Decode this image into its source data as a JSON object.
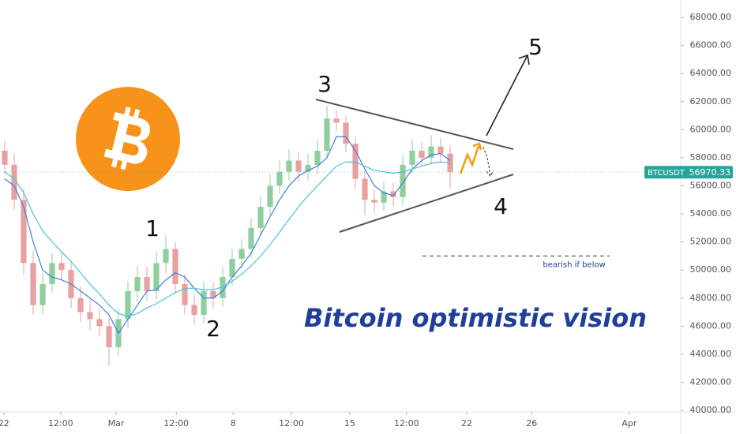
{
  "chart_data": {
    "type": "candlestick",
    "symbol": "BTCUSDT",
    "last_price": 56970.33,
    "last_price_color": "#26a69a",
    "up_color": "#8fcf9f",
    "down_color": "#e9a0a0",
    "x": [
      0.5,
      1.5,
      2.5,
      3.5,
      4.5,
      5.5,
      6.5,
      7.5,
      8.5,
      9.5,
      10.5,
      11.5,
      12.5,
      13.5,
      14.5,
      15.5,
      16.5,
      17.5,
      18.5,
      19.5,
      20.5,
      21.5,
      22.5,
      23.5,
      24.5,
      25.5,
      26.5,
      27.5,
      28.5,
      29.5,
      30.5,
      31.5,
      32.5,
      33.5,
      34.5,
      35.5,
      36.5,
      37.5,
      38.5,
      39.5,
      40.5,
      41.5,
      42.5,
      43.5,
      44.5,
      45.5,
      46.5,
      47.5
    ],
    "open": [
      58500,
      57500,
      55000,
      50500,
      47500,
      49000,
      50500,
      50000,
      48000,
      47000,
      46500,
      46000,
      44500,
      46500,
      48500,
      49500,
      48500,
      50500,
      51500,
      49000,
      47500,
      46800,
      48500,
      48000,
      49500,
      50800,
      51500,
      53000,
      54500,
      56000,
      57000,
      57800,
      57000,
      57500,
      58500,
      60800,
      60500,
      59000,
      56500,
      55000,
      54800,
      55600,
      55200,
      57500,
      58500,
      58000,
      58800,
      58300
    ],
    "high": [
      59200,
      58300,
      55800,
      51400,
      49800,
      51200,
      51300,
      50700,
      48800,
      47900,
      47300,
      46600,
      47200,
      49200,
      50300,
      50200,
      51300,
      52500,
      52000,
      49700,
      48200,
      49200,
      49100,
      50200,
      51500,
      52200,
      53700,
      55300,
      56800,
      57800,
      58600,
      58400,
      58300,
      59300,
      61700,
      61400,
      61000,
      59500,
      57200,
      55700,
      56300,
      56200,
      58200,
      59300,
      59100,
      59600,
      59400,
      58900
    ],
    "low": [
      56800,
      54300,
      49700,
      46800,
      46900,
      48400,
      49300,
      47300,
      46300,
      45700,
      45300,
      43200,
      43900,
      45900,
      47800,
      47800,
      47900,
      49800,
      48300,
      46800,
      46100,
      46200,
      47300,
      47400,
      48900,
      50100,
      50900,
      52400,
      53900,
      55400,
      56400,
      56300,
      56400,
      56900,
      58000,
      59900,
      58400,
      55800,
      53900,
      54000,
      54200,
      54500,
      54600,
      56900,
      57400,
      57500,
      57700,
      55800
    ],
    "close": [
      57500,
      55000,
      50500,
      47500,
      49000,
      50500,
      50000,
      48000,
      47000,
      46500,
      46000,
      44500,
      46500,
      48500,
      49500,
      48500,
      50500,
      51500,
      49000,
      47500,
      46800,
      48500,
      48000,
      49500,
      50800,
      51500,
      53000,
      54500,
      56000,
      57000,
      57800,
      57000,
      57500,
      58500,
      60800,
      60500,
      59000,
      56500,
      55000,
      54800,
      55600,
      55200,
      57500,
      58500,
      58000,
      58800,
      58300,
      56970
    ],
    "moving_averages": [
      {
        "color": "#3d7fe0",
        "values": [
          56500,
          56000,
          54500,
          52000,
          50000,
          49500,
          49300,
          49000,
          48500,
          48000,
          47500,
          46800,
          45500,
          46500,
          47500,
          48500,
          48600,
          49300,
          49800,
          49500,
          48700,
          48000,
          48000,
          48500,
          49500,
          50300,
          51200,
          52500,
          53800,
          55000,
          56000,
          56700,
          57100,
          57400,
          58000,
          59500,
          59500,
          58500,
          57200,
          56000,
          55500,
          55300,
          56200,
          57200,
          57800,
          58200,
          58300,
          57800
        ]
      },
      {
        "color": "#4cc3d9",
        "values": [
          57000,
          56500,
          55500,
          54000,
          52800,
          52000,
          51300,
          50600,
          49800,
          49000,
          48300,
          47500,
          46900,
          46700,
          46900,
          47300,
          47600,
          48000,
          48400,
          48700,
          48700,
          48600,
          48600,
          48800,
          49200,
          49700,
          50300,
          51000,
          51800,
          52700,
          53600,
          54500,
          55300,
          56000,
          56700,
          57400,
          57700,
          57700,
          57400,
          57100,
          57000,
          56900,
          57000,
          57200,
          57400,
          57600,
          57700,
          57600
        ]
      }
    ],
    "xlim": [
      0,
      71.83
    ],
    "xticks": [
      {
        "value": 0.4,
        "label": "22"
      },
      {
        "value": 6.4,
        "label": "12:00"
      },
      {
        "value": 12.25,
        "label": "Mar"
      },
      {
        "value": 18.6,
        "label": "12:00"
      },
      {
        "value": 24.6,
        "label": "8"
      },
      {
        "value": 30.75,
        "label": "12:00"
      },
      {
        "value": 36.9,
        "label": "15"
      },
      {
        "value": 42.9,
        "label": "12:00"
      },
      {
        "value": 49.25,
        "label": "22"
      },
      {
        "value": 56.1,
        "label": "26"
      },
      {
        "value": 66.4,
        "label": "Apr"
      }
    ],
    "ylim": [
      39890,
      69240
    ],
    "yticks": [
      {
        "value": 40000,
        "label": "40000.00"
      },
      {
        "value": 42000,
        "label": "42000.00"
      },
      {
        "value": 44000,
        "label": "44000.00"
      },
      {
        "value": 46000,
        "label": "46000.00"
      },
      {
        "value": 48000,
        "label": "48000.00"
      },
      {
        "value": 50000,
        "label": "50000.00"
      },
      {
        "value": 52000,
        "label": "52000.00"
      },
      {
        "value": 54000,
        "label": "54000.00"
      },
      {
        "value": 56000,
        "label": "56000.00"
      },
      {
        "value": 58000,
        "label": "58000.00"
      },
      {
        "value": 60000,
        "label": "60000.00"
      },
      {
        "value": 62000,
        "label": "62000.00"
      },
      {
        "value": 64000,
        "label": "64000.00"
      },
      {
        "value": 66000,
        "label": "66000.00"
      },
      {
        "value": 68000,
        "label": "68000.00"
      }
    ],
    "grid": false,
    "annotations": {
      "title": "Bitcoin optimistic vision",
      "waves": [
        "1",
        "2",
        "3",
        "4",
        "5"
      ],
      "bearish_note": "bearish if below",
      "bearish_level": 51000
    }
  }
}
